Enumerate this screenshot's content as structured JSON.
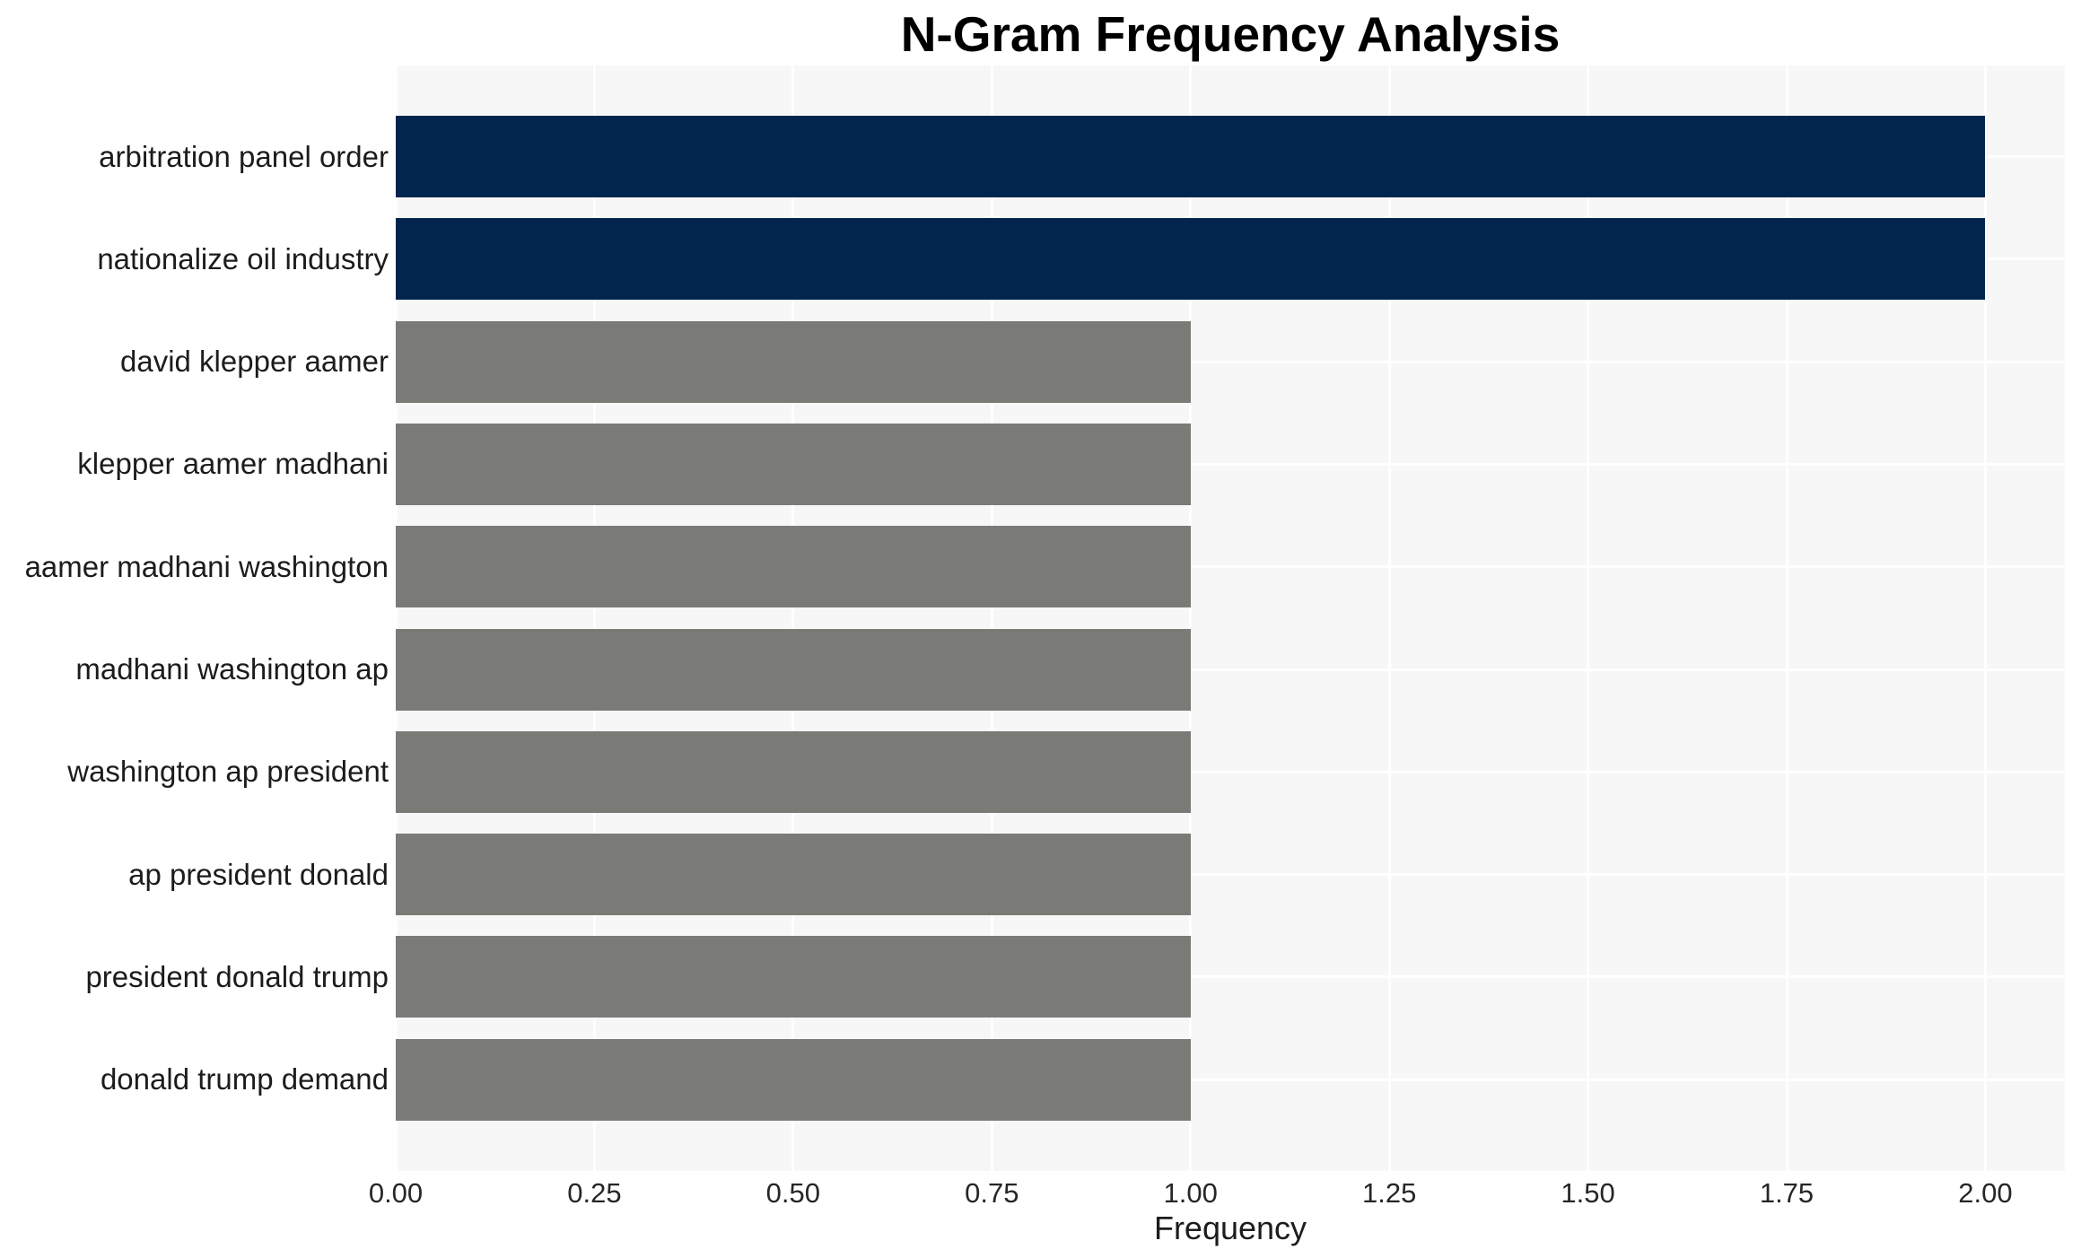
{
  "chart_data": {
    "type": "bar",
    "orientation": "horizontal",
    "title": "N-Gram Frequency Analysis",
    "xlabel": "Frequency",
    "ylabel": "",
    "categories": [
      "arbitration panel order",
      "nationalize oil industry",
      "david klepper aamer",
      "klepper aamer madhani",
      "aamer madhani washington",
      "madhani washington ap",
      "washington ap president",
      "ap president donald",
      "president donald trump",
      "donald trump demand"
    ],
    "values": [
      2,
      2,
      1,
      1,
      1,
      1,
      1,
      1,
      1,
      1
    ],
    "bar_colors": [
      "#02254E",
      "#02254E",
      "#7A7A76",
      "#7A7A76",
      "#7A7A76",
      "#7A7A76",
      "#7A7A76",
      "#7A7A76",
      "#7A7A76",
      "#7A7A76"
    ],
    "xlim": [
      0,
      2.1
    ],
    "xticks": [
      {
        "value": 0.0,
        "label": "0.00"
      },
      {
        "value": 0.25,
        "label": "0.25"
      },
      {
        "value": 0.5,
        "label": "0.50"
      },
      {
        "value": 0.75,
        "label": "0.75"
      },
      {
        "value": 1.0,
        "label": "1.00"
      },
      {
        "value": 1.25,
        "label": "1.25"
      },
      {
        "value": 1.5,
        "label": "1.50"
      },
      {
        "value": 1.75,
        "label": "1.75"
      },
      {
        "value": 2.0,
        "label": "2.00"
      }
    ],
    "grid": true,
    "legend": null,
    "colors": {
      "highlight_bar": "#02254E",
      "regular_bar": "#7A7A76",
      "plot_background": "#F7F7F7",
      "gridline": "#FFFFFF",
      "title_text": "#000000",
      "label_text": "#1C1C1C",
      "tick_text": "#262626"
    }
  }
}
